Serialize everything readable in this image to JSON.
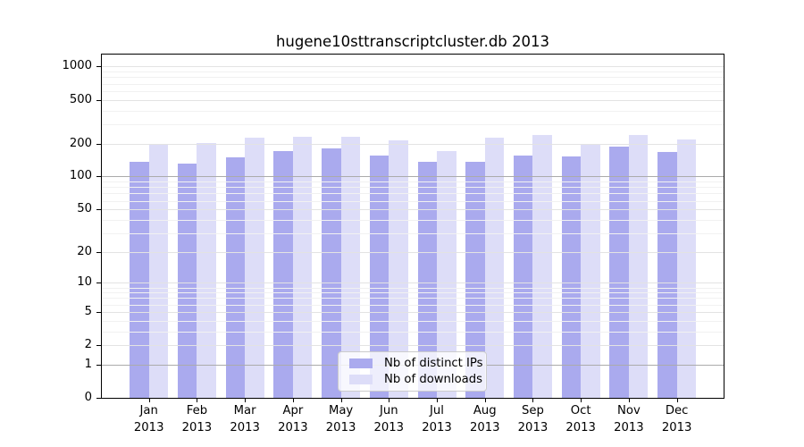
{
  "chart_data": {
    "type": "bar",
    "title": "hugene10sttranscriptcluster.db 2013",
    "categories": [
      "Jan 2013",
      "Feb 2013",
      "Mar 2013",
      "Apr 2013",
      "May 2013",
      "Jun 2013",
      "Jul 2013",
      "Aug 2013",
      "Sep 2013",
      "Oct 2013",
      "Nov 2013",
      "Dec 2013"
    ],
    "series": [
      {
        "name": "Nb of distinct IPs",
        "color": "#aaaaee",
        "values": [
          137,
          132,
          151,
          172,
          181,
          155,
          136,
          137,
          155,
          153,
          189,
          169
        ]
      },
      {
        "name": "Nb of downloads",
        "color": "#ddddf8",
        "values": [
          198,
          203,
          225,
          230,
          231,
          213,
          171,
          225,
          241,
          198,
          240,
          216
        ]
      }
    ],
    "y_axis": {
      "scale": "log10(1+y)",
      "ticks": [
        0,
        1,
        2,
        5,
        10,
        20,
        50,
        100,
        200,
        500,
        1000
      ],
      "ylim": [
        0,
        1286
      ],
      "emphasized_gridlines": [
        1,
        100
      ]
    },
    "xlabel": "",
    "ylabel": "",
    "grid": "on",
    "legend_position": "lower center"
  }
}
